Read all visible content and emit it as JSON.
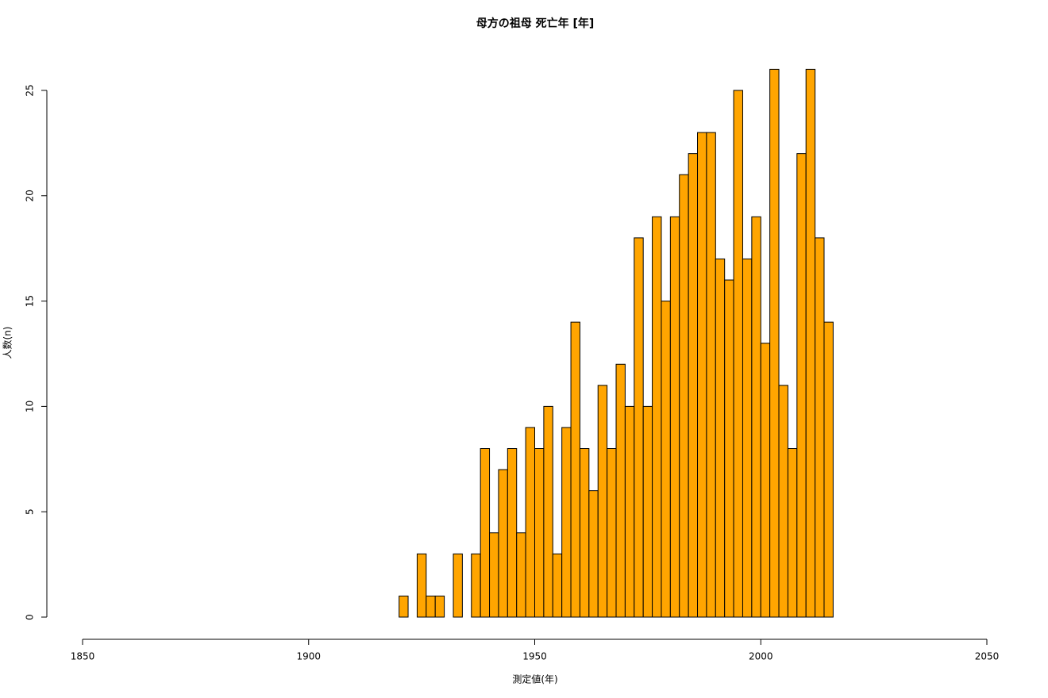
{
  "chart_data": {
    "type": "histogram",
    "title": "母方の祖母 死亡年 [年]",
    "x_label": "測定値(年)",
    "y_label": "人数(n)",
    "bins": [
      1920,
      1922,
      1924,
      1926,
      1928,
      1930,
      1932,
      1934,
      1936,
      1938,
      1940,
      1942,
      1944,
      1946,
      1948,
      1950,
      1952,
      1954,
      1956,
      1958,
      1960,
      1962,
      1964,
      1966,
      1968,
      1970,
      1972,
      1974,
      1976,
      1978,
      1980,
      1982,
      1984,
      1986,
      1988,
      1990,
      1992,
      1994,
      1996,
      1998,
      2000,
      2002,
      2004,
      2006,
      2008,
      2010,
      2012,
      2014,
      2016
    ],
    "values": [
      1,
      0,
      3,
      1,
      1,
      0,
      3,
      0,
      3,
      8,
      4,
      7,
      8,
      4,
      9,
      8,
      10,
      3,
      9,
      14,
      8,
      6,
      11,
      8,
      12,
      10,
      18,
      10,
      19,
      15,
      19,
      21,
      22,
      23,
      23,
      17,
      16,
      25,
      17,
      19,
      13,
      26,
      11,
      8,
      22,
      26,
      18,
      14
    ],
    "color": "#ffa500",
    "xlim": [
      1850,
      2050
    ],
    "xticks": [
      1850,
      1900,
      1950,
      2000,
      2050
    ],
    "ylim": [
      0,
      26
    ],
    "yticks": [
      0,
      5,
      10,
      15,
      20,
      25
    ]
  }
}
